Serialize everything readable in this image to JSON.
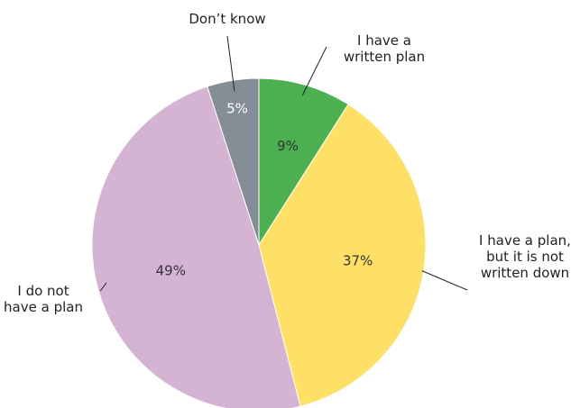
{
  "chart_data": {
    "type": "pie",
    "slices": [
      {
        "category": "I have a written plan",
        "label_lines": [
          "I have a",
          "written plan"
        ],
        "value": 9,
        "value_label": "9%",
        "color": "#4caf50",
        "value_text_color": "#333333"
      },
      {
        "category": "I have a plan, but it is not written down",
        "label_lines": [
          "I have a plan,",
          "but it is not",
          "written down"
        ],
        "value": 37,
        "value_label": "37%",
        "color": "#ffe066",
        "value_text_color": "#333333"
      },
      {
        "category": "I do not have a plan",
        "label_lines": [
          "I do not",
          "have a plan"
        ],
        "value": 49,
        "value_label": "49%",
        "color": "#d4b3d3",
        "value_text_color": "#333333"
      },
      {
        "category": "Don't know",
        "label_lines": [
          "Don’t know"
        ],
        "value": 5,
        "value_label": "5%",
        "color": "#858d96",
        "value_text_color": "#ffffff"
      }
    ],
    "start_position": "top, clockwise",
    "legend": "none (outside labels with leader lines)"
  }
}
